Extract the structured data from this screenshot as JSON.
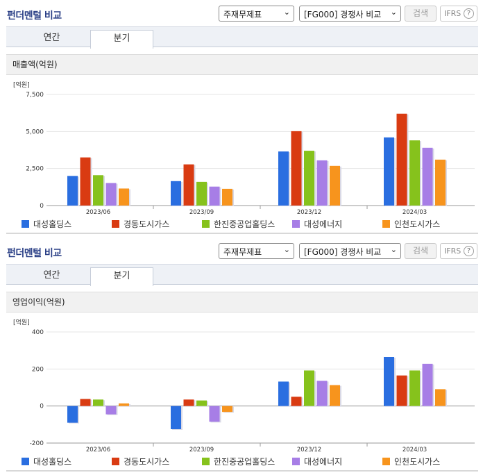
{
  "panels": [
    {
      "title": "펀더멘털 비교",
      "select_report": "주재무제표",
      "select_compare": "[FG000] 경쟁사 비교",
      "search_label": "검색",
      "ifrs_label": "IFRS",
      "ifrs_help": "?",
      "tabs": [
        "연간",
        "분기"
      ],
      "active_tab": "분기",
      "section_title": "매출액(억원)"
    },
    {
      "title": "펀더멘털 비교",
      "select_report": "주재무제표",
      "select_compare": "[FG000] 경쟁사 비교",
      "search_label": "검색",
      "ifrs_label": "IFRS",
      "ifrs_help": "?",
      "tabs": [
        "연간",
        "분기"
      ],
      "active_tab": "분기",
      "section_title": "영업이익(억원)"
    }
  ],
  "colors": {
    "대성홀딩스": "#2a6ee0",
    "경동도시가스": "#d93b12",
    "한진중공업홀딩스": "#86c21c",
    "대성에너지": "#a77ee6",
    "인천도시가스": "#f7941d"
  },
  "chart_data": [
    {
      "type": "bar",
      "unit_label": "[억원]",
      "categories": [
        "2023/06",
        "2023/09",
        "2023/12",
        "2024/03"
      ],
      "ylim": [
        0,
        7500
      ],
      "yticks": [
        0,
        2500,
        5000,
        7500
      ],
      "ytick_labels": [
        "0",
        "2,500",
        "5,000",
        "7,500"
      ],
      "series": [
        {
          "name": "대성홀딩스",
          "values": [
            2000,
            1650,
            3650,
            4600
          ]
        },
        {
          "name": "경동도시가스",
          "values": [
            3250,
            2780,
            5020,
            6200
          ]
        },
        {
          "name": "한진중공업홀딩스",
          "values": [
            2050,
            1600,
            3700,
            4400
          ]
        },
        {
          "name": "대성에너지",
          "values": [
            1520,
            1280,
            3050,
            3900
          ]
        },
        {
          "name": "인천도시가스",
          "values": [
            1150,
            1130,
            2680,
            3100
          ]
        }
      ]
    },
    {
      "type": "bar",
      "unit_label": "[억원]",
      "categories": [
        "2023/06",
        "2023/09",
        "2023/12",
        "2024/03"
      ],
      "ylim": [
        -200,
        400
      ],
      "yticks": [
        -200,
        0,
        200,
        400
      ],
      "ytick_labels": [
        "-200",
        "0",
        "200",
        "400"
      ],
      "series": [
        {
          "name": "대성홀딩스",
          "values": [
            -90,
            -125,
            132,
            265
          ]
        },
        {
          "name": "경동도시가스",
          "values": [
            38,
            35,
            50,
            165
          ]
        },
        {
          "name": "한진중공업홀딩스",
          "values": [
            35,
            30,
            192,
            192
          ]
        },
        {
          "name": "대성에너지",
          "values": [
            -45,
            -85,
            136,
            228
          ]
        },
        {
          "name": "인천도시가스",
          "values": [
            14,
            -32,
            113,
            91
          ]
        }
      ]
    }
  ]
}
